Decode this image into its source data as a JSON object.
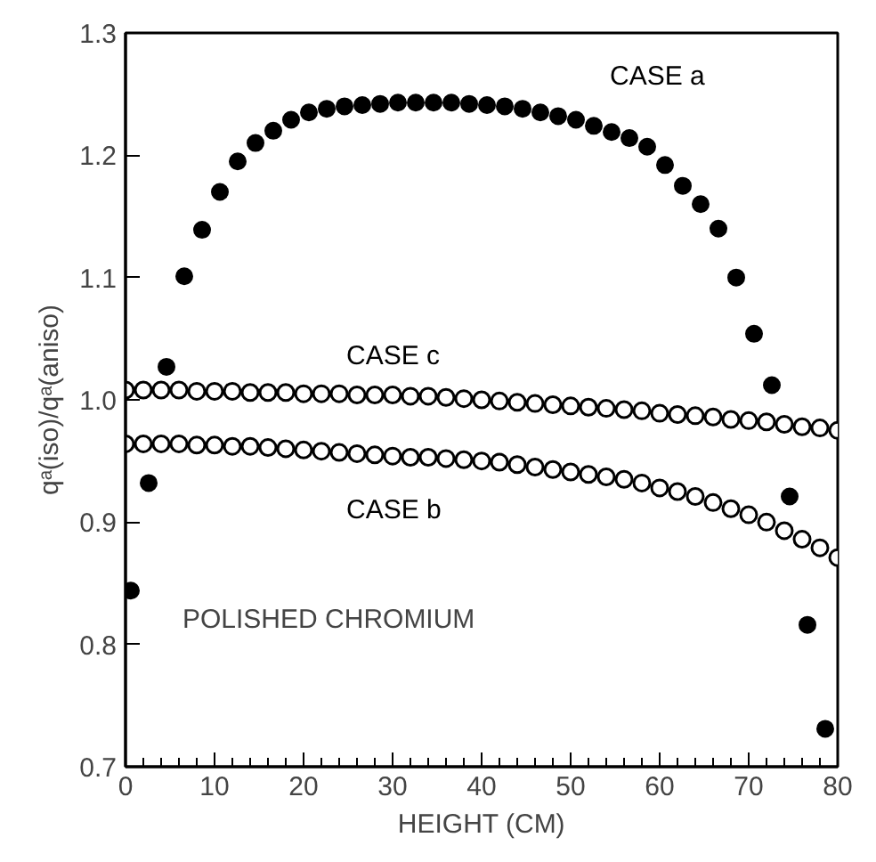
{
  "chart_data": {
    "type": "scatter",
    "xlabel": "HEIGHT (CM)",
    "ylabel": "qᵃ(iso)/qᵃ(aniso)",
    "xlim": [
      0,
      80
    ],
    "ylim": [
      0.7,
      1.3
    ],
    "xticks": [
      0,
      10,
      20,
      30,
      40,
      50,
      60,
      70,
      80
    ],
    "yticks": [
      0.7,
      0.8,
      0.9,
      {
        "value": 1,
        "label": "1.0"
      },
      1.1,
      1.2,
      1.3
    ],
    "grid": false,
    "annotations": [
      "POLISHED CHROMIUM"
    ],
    "series": [
      {
        "name": "CASE a",
        "color": "#000000",
        "marker": "circle",
        "x": [
          0.6,
          2.6,
          4.6,
          6.6,
          8.6,
          10.6,
          12.6,
          14.6,
          16.6,
          18.6,
          20.6,
          22.6,
          24.6,
          26.6,
          28.6,
          30.6,
          32.6,
          34.6,
          36.6,
          38.6,
          40.6,
          42.6,
          44.6,
          46.6,
          48.6,
          50.6,
          52.6,
          54.6,
          56.6,
          58.6,
          60.6,
          62.6,
          64.6,
          66.6,
          68.6,
          70.6,
          72.6,
          74.6,
          76.6,
          78.6
        ],
        "values": [
          0.844,
          0.932,
          1.027,
          1.101,
          1.139,
          1.17,
          1.195,
          1.21,
          1.22,
          1.229,
          1.235,
          1.238,
          1.24,
          1.241,
          1.242,
          1.243,
          1.243,
          1.243,
          1.243,
          1.242,
          1.241,
          1.24,
          1.238,
          1.235,
          1.232,
          1.229,
          1.224,
          1.219,
          1.214,
          1.207,
          1.192,
          1.175,
          1.16,
          1.14,
          1.1,
          1.054,
          1.012,
          0.921,
          0.816,
          0.731
        ]
      },
      {
        "name": "CASE c",
        "color": "#000000",
        "marker": "open circle",
        "x": [
          0,
          2,
          4,
          6,
          8,
          10,
          12,
          14,
          16,
          18,
          20,
          22,
          24,
          26,
          28,
          30,
          32,
          34,
          36,
          38,
          40,
          42,
          44,
          46,
          48,
          50,
          52,
          54,
          56,
          58,
          60,
          62,
          64,
          66,
          68,
          70,
          72,
          74,
          76,
          78,
          80
        ],
        "values": [
          1.008,
          1.008,
          1.008,
          1.008,
          1.007,
          1.007,
          1.007,
          1.006,
          1.006,
          1.006,
          1.005,
          1.005,
          1.005,
          1.004,
          1.004,
          1.004,
          1.003,
          1.003,
          1.002,
          1.001,
          1.0,
          0.999,
          0.998,
          0.997,
          0.996,
          0.995,
          0.994,
          0.993,
          0.992,
          0.991,
          0.989,
          0.988,
          0.987,
          0.986,
          0.984,
          0.983,
          0.982,
          0.98,
          0.978,
          0.977,
          0.975
        ]
      },
      {
        "name": "CASE b",
        "color": "#000000",
        "marker": "open circle",
        "x": [
          0,
          2,
          4,
          6,
          8,
          10,
          12,
          14,
          16,
          18,
          20,
          22,
          24,
          26,
          28,
          30,
          32,
          34,
          36,
          38,
          40,
          42,
          44,
          46,
          48,
          50,
          52,
          54,
          56,
          58,
          60,
          62,
          64,
          66,
          68,
          70,
          72,
          74,
          76,
          78,
          80
        ],
        "values": [
          0.964,
          0.964,
          0.964,
          0.964,
          0.963,
          0.963,
          0.962,
          0.962,
          0.961,
          0.96,
          0.959,
          0.958,
          0.957,
          0.956,
          0.955,
          0.954,
          0.953,
          0.953,
          0.952,
          0.951,
          0.95,
          0.949,
          0.947,
          0.945,
          0.943,
          0.941,
          0.939,
          0.937,
          0.935,
          0.932,
          0.928,
          0.925,
          0.921,
          0.916,
          0.911,
          0.906,
          0.9,
          0.893,
          0.886,
          0.879,
          0.871
        ]
      }
    ]
  }
}
